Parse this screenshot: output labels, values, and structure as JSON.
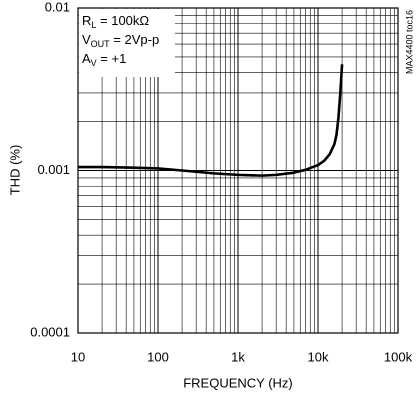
{
  "chart_data": {
    "type": "line",
    "xlabel": "FREQUENCY (Hz)",
    "ylabel": "THD (%)",
    "xscale": "log",
    "yscale": "log",
    "grid": true,
    "xlim": [
      10,
      100000
    ],
    "ylim": [
      0.0001,
      0.01
    ],
    "xticks": [
      10,
      100,
      {
        "value": 1000,
        "label": "1k"
      },
      {
        "value": 10000,
        "label": "10k"
      },
      {
        "value": 100000,
        "label": "100k"
      }
    ],
    "yticks": [
      0.0001,
      0.001,
      0.01
    ],
    "xminorticks": [
      20,
      30,
      40,
      50,
      60,
      70,
      80,
      90,
      200,
      300,
      400,
      500,
      600,
      700,
      800,
      900,
      2000,
      3000,
      4000,
      5000,
      6000,
      7000,
      8000,
      9000,
      20000,
      30000,
      40000,
      50000,
      60000,
      70000,
      80000,
      90000
    ],
    "yminorticks": [
      0.0002,
      0.0003,
      0.0004,
      0.0005,
      0.0006,
      0.0007,
      0.0008,
      0.0009,
      0.002,
      0.003,
      0.004,
      0.005,
      0.006,
      0.007,
      0.008,
      0.009
    ],
    "x": [
      10,
      20,
      50,
      100,
      200,
      500,
      1000,
      2000,
      3000,
      5000,
      7000,
      10000,
      12000,
      14000,
      16000,
      17000,
      18000,
      19000,
      20000
    ],
    "series": [
      {
        "color": "#000000",
        "values": [
          0.00105,
          0.00105,
          0.00104,
          0.00103,
          0.001,
          0.00096,
          0.00094,
          0.00093,
          0.00094,
          0.00097,
          0.00101,
          0.00108,
          0.00115,
          0.00126,
          0.00145,
          0.00165,
          0.0021,
          0.003,
          0.0045
        ]
      }
    ],
    "annotations": [
      {
        "text": "R",
        "sub": "L",
        "rest": " = 100kΩ"
      },
      {
        "text": "V",
        "sub": "OUT",
        "rest": " = 2Vp-p"
      },
      {
        "text": "A",
        "sub": "V",
        "rest": " = +1"
      }
    ],
    "side_note": "MAX4400 toc16"
  }
}
